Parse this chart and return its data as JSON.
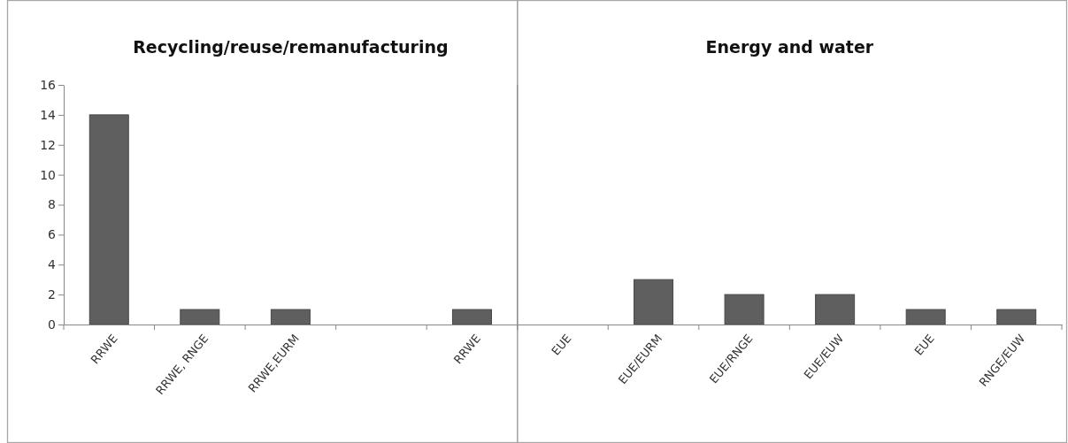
{
  "chart_data": [
    {
      "type": "bar",
      "title": "Recycling/reuse/remanufacturing",
      "categories": [
        "RRWE",
        "RRWE, RNGE",
        "RRWE,EURM",
        null,
        "RRWE"
      ],
      "values": [
        14,
        1,
        1,
        null,
        1
      ],
      "color": "#5f5f5f",
      "ylim": [
        0,
        16
      ],
      "yticks": [
        0,
        2,
        4,
        6,
        8,
        10,
        12,
        14,
        16
      ]
    },
    {
      "type": "bar",
      "title": "Energy and water",
      "categories": [
        "EUE",
        "EUE/EURM",
        "EUE/RNGE",
        "EUE/EUW",
        "EUE",
        "RNGE/EUW"
      ],
      "values": [
        0,
        3,
        2,
        2,
        1,
        1
      ],
      "color": "#5f5f5f",
      "ylim": [
        0,
        16
      ],
      "tick_labels": "x"
    }
  ]
}
